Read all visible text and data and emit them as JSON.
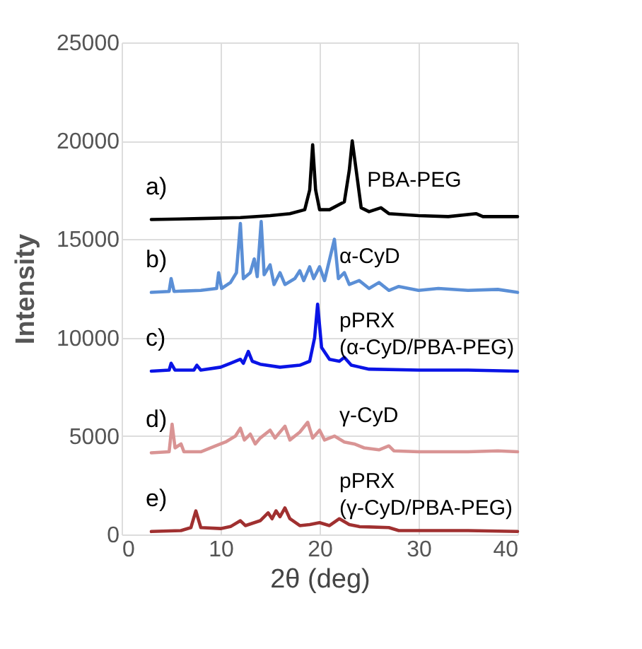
{
  "chart_data": {
    "type": "line",
    "xlabel": "2θ (deg)",
    "ylabel": "Intensity",
    "xlim": [
      0,
      40
    ],
    "xticks": [
      0,
      10,
      20,
      30,
      40
    ],
    "ylim": [
      0,
      25000
    ],
    "yticks": [
      0,
      5000,
      10000,
      15000,
      20000,
      25000
    ],
    "grid": true,
    "marker": "none",
    "line_style": "solid",
    "series": [
      {
        "name": "PBA-PEG",
        "color": "#000000",
        "x": [
          3,
          8,
          12,
          15,
          17,
          18.5,
          19.0,
          19.3,
          19.6,
          20.0,
          21,
          22.5,
          23.0,
          23.3,
          23.7,
          24.2,
          25,
          26.2,
          27,
          30,
          33,
          35.8,
          36.5,
          40
        ],
        "values": [
          16000,
          16050,
          16100,
          16200,
          16300,
          16500,
          17500,
          19800,
          17500,
          16500,
          16500,
          16900,
          18500,
          20000,
          18500,
          16600,
          16400,
          16600,
          16300,
          16200,
          16150,
          16300,
          16150,
          16150
        ]
      },
      {
        "name": "α-CyD",
        "color": "#5b8fd6",
        "x": [
          3,
          4.8,
          5.0,
          5.3,
          8,
          9.6,
          9.8,
          10.1,
          11,
          11.6,
          12,
          12.3,
          13,
          13.4,
          13.7,
          14.1,
          14.4,
          15,
          15.4,
          16,
          16.5,
          17.5,
          18,
          18.4,
          19,
          19.4,
          20,
          20.5,
          21.5,
          21.9,
          22.5,
          23,
          24,
          25,
          26,
          27,
          28,
          30,
          32,
          35,
          38,
          40
        ],
        "values": [
          12300,
          12350,
          13000,
          12350,
          12400,
          12500,
          13300,
          12500,
          12800,
          13300,
          15800,
          13000,
          13300,
          14000,
          13100,
          15900,
          13200,
          13700,
          12700,
          13300,
          12700,
          13000,
          13400,
          12900,
          13600,
          13000,
          13600,
          12900,
          15000,
          13000,
          13300,
          12700,
          12900,
          12500,
          12800,
          12400,
          12600,
          12400,
          12500,
          12400,
          12450,
          12300
        ]
      },
      {
        "name": "pPRX (α-CyD/PBA-PEG)",
        "color": "#0a14e6",
        "x": [
          3,
          4.8,
          5.0,
          5.4,
          7.3,
          7.6,
          8,
          10,
          11,
          12,
          12.3,
          12.8,
          13.2,
          14,
          16,
          18,
          19,
          19.5,
          19.8,
          20.2,
          21,
          22,
          22.5,
          23.2,
          25,
          30,
          35,
          40
        ],
        "values": [
          8300,
          8350,
          8700,
          8350,
          8350,
          8600,
          8350,
          8500,
          8700,
          8900,
          8700,
          9300,
          8800,
          8650,
          8500,
          8600,
          8800,
          10000,
          11700,
          9500,
          8900,
          8800,
          9000,
          8600,
          8400,
          8350,
          8350,
          8300
        ]
      },
      {
        "name": "γ-CyD",
        "color": "#d99494",
        "x": [
          3,
          4.8,
          5.1,
          5.4,
          6,
          6.3,
          8,
          9.5,
          10,
          10.5,
          11.5,
          12,
          12.4,
          13,
          13.5,
          14,
          15,
          15.5,
          16.5,
          17,
          18,
          18.8,
          19.3,
          20,
          20.5,
          21.5,
          22.5,
          23.5,
          24.5,
          26,
          27,
          27.5,
          30,
          35,
          38,
          40
        ],
        "values": [
          4150,
          4200,
          5600,
          4400,
          4600,
          4200,
          4200,
          4500,
          4600,
          4700,
          5000,
          5400,
          4800,
          5100,
          4600,
          4900,
          5300,
          4900,
          5500,
          4800,
          5200,
          5700,
          4900,
          5300,
          4800,
          5000,
          4700,
          4600,
          4400,
          4300,
          4500,
          4250,
          4200,
          4200,
          4250,
          4200
        ]
      },
      {
        "name": "pPRX (γ-CyD/PBA-PEG)",
        "color": "#a03030",
        "x": [
          3,
          6,
          7,
          7.5,
          8,
          10,
          11,
          12,
          12.5,
          14,
          14.8,
          15.2,
          15.6,
          16,
          16.5,
          17,
          18,
          19,
          20,
          21,
          22,
          23,
          24,
          27,
          28,
          30,
          35,
          40
        ],
        "values": [
          150,
          200,
          350,
          1200,
          350,
          300,
          400,
          700,
          450,
          700,
          1100,
          800,
          1200,
          900,
          1350,
          800,
          450,
          500,
          600,
          450,
          800,
          500,
          400,
          350,
          200,
          200,
          200,
          150
        ]
      }
    ],
    "annotations": [
      "a)",
      "b)",
      "c)",
      "d)",
      "e)"
    ]
  }
}
